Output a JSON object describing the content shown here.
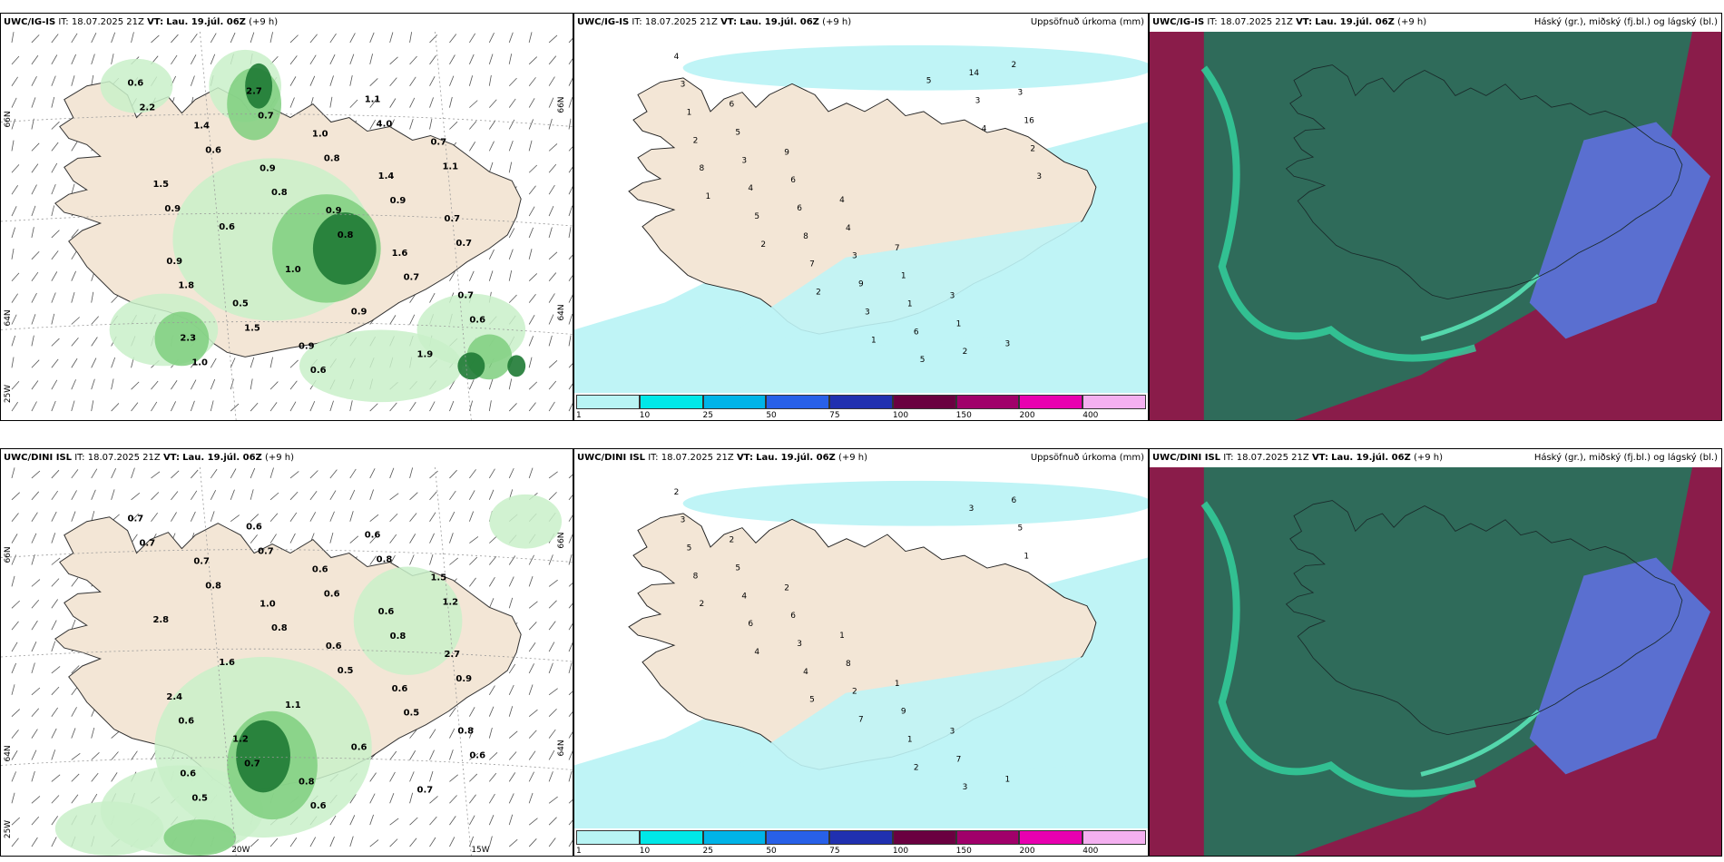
{
  "panels": [
    {
      "model": "UWC/IG-IS",
      "it_label": "IT:",
      "it_value": "18.07.2025 21Z",
      "vt_label": "VT:",
      "vt_value": "Lau. 19.júl. 06Z",
      "lead": "(+9 h)",
      "right_title": "",
      "type": "precip-wind",
      "values": [
        "0.6",
        "1.4",
        "0.9",
        "0.9",
        "1.6",
        "0.7",
        "2.3",
        "2.7",
        "1.0",
        "1.4",
        "0.7",
        "0.9",
        "0.5",
        "0.9",
        "1.1",
        "0.7",
        "1.5",
        "0.6",
        "1.0",
        "0.9",
        "1.9",
        "2.2",
        "0.6",
        "0.8",
        "0.8",
        "0.7",
        "0.6",
        "1.0",
        "0.7",
        "0.8",
        "0.9",
        "0.7",
        "1.8",
        "1.5",
        "0.6",
        "4.0",
        "1.1",
        "0.9"
      ]
    },
    {
      "model": "UWC/IG-IS",
      "it_label": "IT:",
      "it_value": "18.07.2025 21Z",
      "vt_label": "VT:",
      "vt_value": "Lau. 19.júl. 06Z",
      "lead": "(+9 h)",
      "right_title": "Uppsöfnuð úrkoma (mm)",
      "type": "accum",
      "values": [
        "4",
        "6",
        "9",
        "4",
        "7",
        "3",
        "3",
        "3",
        "5",
        "6",
        "4",
        "1",
        "1",
        "2",
        "1",
        "3",
        "6",
        "3",
        "1",
        "2",
        "3",
        "2",
        "4",
        "8",
        "9",
        "6",
        "14",
        "16",
        "8",
        "5",
        "7",
        "3",
        "5",
        "3",
        "2",
        "1",
        "2",
        "2",
        "1",
        "5",
        "4",
        "3"
      ]
    },
    {
      "model": "UWC/IG-IS",
      "it_label": "IT:",
      "it_value": "18.07.2025 21Z",
      "vt_label": "VT:",
      "vt_value": "Lau. 19.júl. 06Z",
      "lead": "(+9 h)",
      "right_title": "Háský (gr.), miðský (fj.bl.) og lágský (bl.)",
      "type": "cloud"
    },
    {
      "model": "UWC/DINI ISL",
      "it_label": "IT:",
      "it_value": "18.07.2025 21Z",
      "vt_label": "VT:",
      "vt_value": "Lau. 19.júl. 06Z",
      "lead": "(+9 h)",
      "right_title": "",
      "type": "precip-wind",
      "values": [
        "0.7",
        "0.7",
        "1.0",
        "0.6",
        "0.6",
        "0.8",
        "0.6",
        "0.6",
        "0.6",
        "0.6",
        "2.7",
        "2.4",
        "1.2",
        "0.8",
        "0.6",
        "1.5",
        "2.8",
        "1.6",
        "1.1",
        "0.6",
        "0.7",
        "0.7",
        "0.8",
        "0.8",
        "0.5",
        "0.5",
        "0.6",
        "0.5",
        "0.7",
        "0.6",
        "0.8",
        "0.9",
        "0.6",
        "0.7",
        "0.6",
        "0.8",
        "1.2"
      ]
    },
    {
      "model": "UWC/DINI ISL",
      "it_label": "IT:",
      "it_value": "18.07.2025 21Z",
      "vt_label": "VT:",
      "vt_value": "Lau. 19.júl. 06Z",
      "lead": "(+9 h)",
      "right_title": "Uppsöfnuð úrkoma (mm)",
      "type": "accum",
      "values": [
        "2",
        "2",
        "2",
        "1",
        "1",
        "3",
        "1",
        "3",
        "5",
        "6",
        "8",
        "9",
        "7",
        "6",
        "5",
        "4",
        "3",
        "2",
        "1",
        "3",
        "5",
        "8",
        "6",
        "4",
        "7",
        "2",
        "3",
        "1",
        "2",
        "4",
        "5"
      ]
    },
    {
      "model": "UWC/DINI ISL",
      "it_label": "IT:",
      "it_value": "18.07.2025 21Z",
      "vt_label": "VT:",
      "vt_value": "Lau. 19.júl. 06Z",
      "lead": "(+9 h)",
      "right_title": "Háský (gr.), miðský (fj.bl.) og lágský (bl.)",
      "type": "cloud"
    }
  ],
  "legend": {
    "thresholds": [
      "1",
      "10",
      "25",
      "50",
      "75",
      "100",
      "150",
      "200",
      "400"
    ],
    "colors": [
      "#b8f4f4",
      "#00e8e8",
      "#00b4e8",
      "#2860e8",
      "#2030b0",
      "#6a0040",
      "#a0006a",
      "#e800b0",
      "#f4b0f0"
    ]
  },
  "axis_labels_left": [
    "66N",
    "64N",
    "25W"
  ],
  "axis_labels_right": [
    "66N",
    "64N"
  ],
  "axis_labels_bottom": [
    "20W",
    "15W"
  ],
  "colors": {
    "land": "#f3e6d6",
    "precip_light": "#c9f0c9",
    "precip_mid": "#7fcf7f",
    "precip_dark": "#1e7a34",
    "accum_sea": "#bff4f6",
    "cloud_high": "#2f6b5a",
    "cloud_mid": "#5a6fd0",
    "cloud_low": "#8a1c4a"
  }
}
